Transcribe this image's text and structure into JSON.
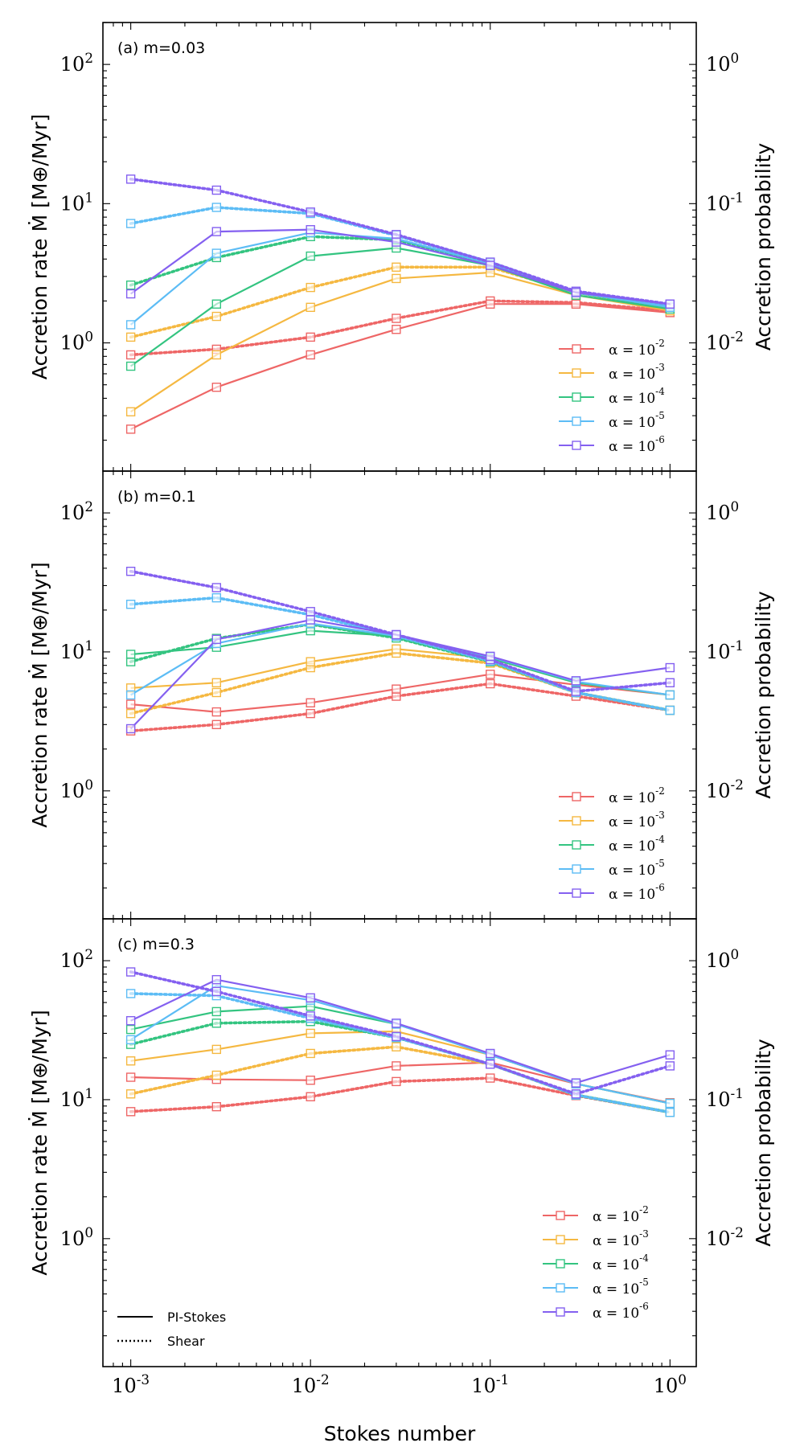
{
  "figure": {
    "xlabel": "Stokes number",
    "ylabel_left": "Accretion rate Ṁ [M⊕/Myr]",
    "ylabel_right": "Accretion probability",
    "linestyle_legend": [
      {
        "label": "PI-Stokes",
        "style": "solid"
      },
      {
        "label": "Shear",
        "style": "dotted"
      }
    ]
  },
  "chart_data": [
    {
      "type": "line",
      "title": "(a) m=0.03",
      "xscale": "log",
      "yscale": "log",
      "x": [
        0.001,
        0.003,
        0.01,
        0.03,
        0.1,
        0.3,
        1
      ],
      "xlim": [
        0.0007,
        1.4
      ],
      "ylim": [
        0.12,
        200
      ],
      "x_ticks": [
        "10⁻³",
        "10⁻²",
        "10⁻¹",
        "10⁰"
      ],
      "y_ticks_left": [
        "10⁰",
        "10¹",
        "10²"
      ],
      "y_ticks_right": [
        "10⁻²",
        "10⁻¹",
        "10⁰"
      ],
      "legend_position": "lower-right",
      "series": [
        {
          "name": "α = 10⁻²",
          "color": "#ee6666",
          "pi_stokes": [
            0.24,
            0.48,
            0.82,
            1.25,
            1.9,
            1.9,
            1.65
          ],
          "shear": [
            0.82,
            0.9,
            1.1,
            1.5,
            2.0,
            1.95,
            1.7
          ]
        },
        {
          "name": "α = 10⁻³",
          "color": "#f5b841",
          "pi_stokes": [
            0.32,
            0.82,
            1.8,
            2.9,
            3.2,
            2.2,
            1.7
          ],
          "shear": [
            1.1,
            1.55,
            2.5,
            3.5,
            3.5,
            2.3,
            1.75
          ]
        },
        {
          "name": "α = 10⁻⁴",
          "color": "#33c480",
          "pi_stokes": [
            0.68,
            1.9,
            4.2,
            4.8,
            3.6,
            2.2,
            1.75
          ],
          "shear": [
            2.6,
            4.1,
            5.8,
            5.5,
            3.7,
            2.3,
            1.8
          ]
        },
        {
          "name": "α = 10⁻⁵",
          "color": "#5cbcf5",
          "pi_stokes": [
            1.35,
            4.4,
            6.2,
            5.6,
            3.7,
            2.3,
            1.8
          ],
          "shear": [
            7.2,
            9.4,
            8.5,
            5.9,
            3.8,
            2.3,
            1.85
          ]
        },
        {
          "name": "α = 10⁻⁶",
          "color": "#8460f0",
          "pi_stokes": [
            2.25,
            6.3,
            6.5,
            5.3,
            3.6,
            2.3,
            1.9
          ],
          "shear": [
            15.0,
            12.5,
            8.7,
            6.0,
            3.8,
            2.35,
            1.9
          ]
        }
      ]
    },
    {
      "type": "line",
      "title": "(b) m=0.1",
      "xscale": "log",
      "yscale": "log",
      "x": [
        0.001,
        0.003,
        0.01,
        0.03,
        0.1,
        0.3,
        1
      ],
      "xlim": [
        0.0007,
        1.4
      ],
      "ylim": [
        0.12,
        200
      ],
      "x_ticks": [
        "10⁻³",
        "10⁻²",
        "10⁻¹",
        "10⁰"
      ],
      "y_ticks_left": [
        "10⁰",
        "10¹",
        "10²"
      ],
      "y_ticks_right": [
        "10⁻²",
        "10⁻¹",
        "10⁰"
      ],
      "legend_position": "lower-right",
      "series": [
        {
          "name": "α = 10⁻²",
          "color": "#ee6666",
          "pi_stokes": [
            4.2,
            3.7,
            4.3,
            5.4,
            6.9,
            5.8,
            4.9
          ],
          "shear": [
            2.7,
            3.0,
            3.6,
            4.8,
            5.9,
            4.8,
            3.8
          ]
        },
        {
          "name": "α = 10⁻³",
          "color": "#f5b841",
          "pi_stokes": [
            5.5,
            6.0,
            8.5,
            10.5,
            9.0,
            6.0,
            4.9
          ],
          "shear": [
            3.6,
            5.1,
            7.7,
            9.8,
            8.3,
            5.1,
            3.8
          ]
        },
        {
          "name": "α = 10⁻⁴",
          "color": "#33c480",
          "pi_stokes": [
            9.6,
            10.8,
            14.2,
            13.0,
            9.0,
            6.0,
            4.9
          ],
          "shear": [
            8.5,
            12.5,
            15.8,
            12.6,
            8.5,
            5.1,
            3.8
          ]
        },
        {
          "name": "α = 10⁻⁵",
          "color": "#5cbcf5",
          "pi_stokes": [
            4.9,
            11.5,
            16.0,
            13.0,
            9.2,
            6.1,
            4.9
          ],
          "shear": [
            22.0,
            24.5,
            18.5,
            13.0,
            8.6,
            5.1,
            3.8
          ]
        },
        {
          "name": "α = 10⁻⁶",
          "color": "#8460f0",
          "pi_stokes": [
            2.8,
            12.3,
            17.0,
            13.3,
            9.3,
            6.2,
            7.7
          ],
          "shear": [
            38.0,
            29.0,
            19.5,
            13.3,
            8.8,
            5.2,
            6.0
          ]
        }
      ]
    },
    {
      "type": "line",
      "title": "(c) m=0.3",
      "xscale": "log",
      "yscale": "log",
      "x": [
        0.001,
        0.003,
        0.01,
        0.03,
        0.1,
        0.3,
        1
      ],
      "xlim": [
        0.0007,
        1.4
      ],
      "ylim": [
        0.12,
        200
      ],
      "x_ticks": [
        "10⁻³",
        "10⁻²",
        "10⁻¹",
        "10⁰"
      ],
      "y_ticks_left": [
        "10⁰",
        "10¹",
        "10²"
      ],
      "y_ticks_right": [
        "10⁻²",
        "10⁻¹",
        "10⁰"
      ],
      "legend_position": "lower-right",
      "series": [
        {
          "name": "α = 10⁻²",
          "color": "#ee6666",
          "pi_stokes": [
            14.5,
            14.0,
            13.8,
            17.5,
            18.5,
            13.0,
            9.5
          ],
          "shear": [
            8.2,
            8.9,
            10.5,
            13.5,
            14.3,
            10.7,
            8.1
          ]
        },
        {
          "name": "α = 10⁻³",
          "color": "#f5b841",
          "pi_stokes": [
            19.0,
            23.0,
            30.0,
            31.0,
            21.0,
            13.0,
            9.4
          ],
          "shear": [
            11.0,
            15.0,
            21.5,
            24.0,
            18.0,
            10.8,
            8.1
          ]
        },
        {
          "name": "α = 10⁻⁴",
          "color": "#33c480",
          "pi_stokes": [
            32.0,
            43.0,
            47.0,
            35.0,
            21.0,
            13.0,
            9.4
          ],
          "shear": [
            25.0,
            35.5,
            36.5,
            28.0,
            18.0,
            10.8,
            8.1
          ]
        },
        {
          "name": "α = 10⁻⁵",
          "color": "#5cbcf5",
          "pi_stokes": [
            27.0,
            66.0,
            52.0,
            35.0,
            21.0,
            13.0,
            9.4
          ],
          "shear": [
            58.0,
            56.0,
            38.5,
            28.0,
            18.0,
            10.8,
            8.1
          ]
        },
        {
          "name": "α = 10⁻⁶",
          "color": "#8460f0",
          "pi_stokes": [
            37.0,
            73.0,
            54.0,
            35.5,
            21.5,
            13.2,
            21.0
          ],
          "shear": [
            83.0,
            60.0,
            40.0,
            28.5,
            18.0,
            11.0,
            17.5
          ]
        }
      ]
    }
  ]
}
